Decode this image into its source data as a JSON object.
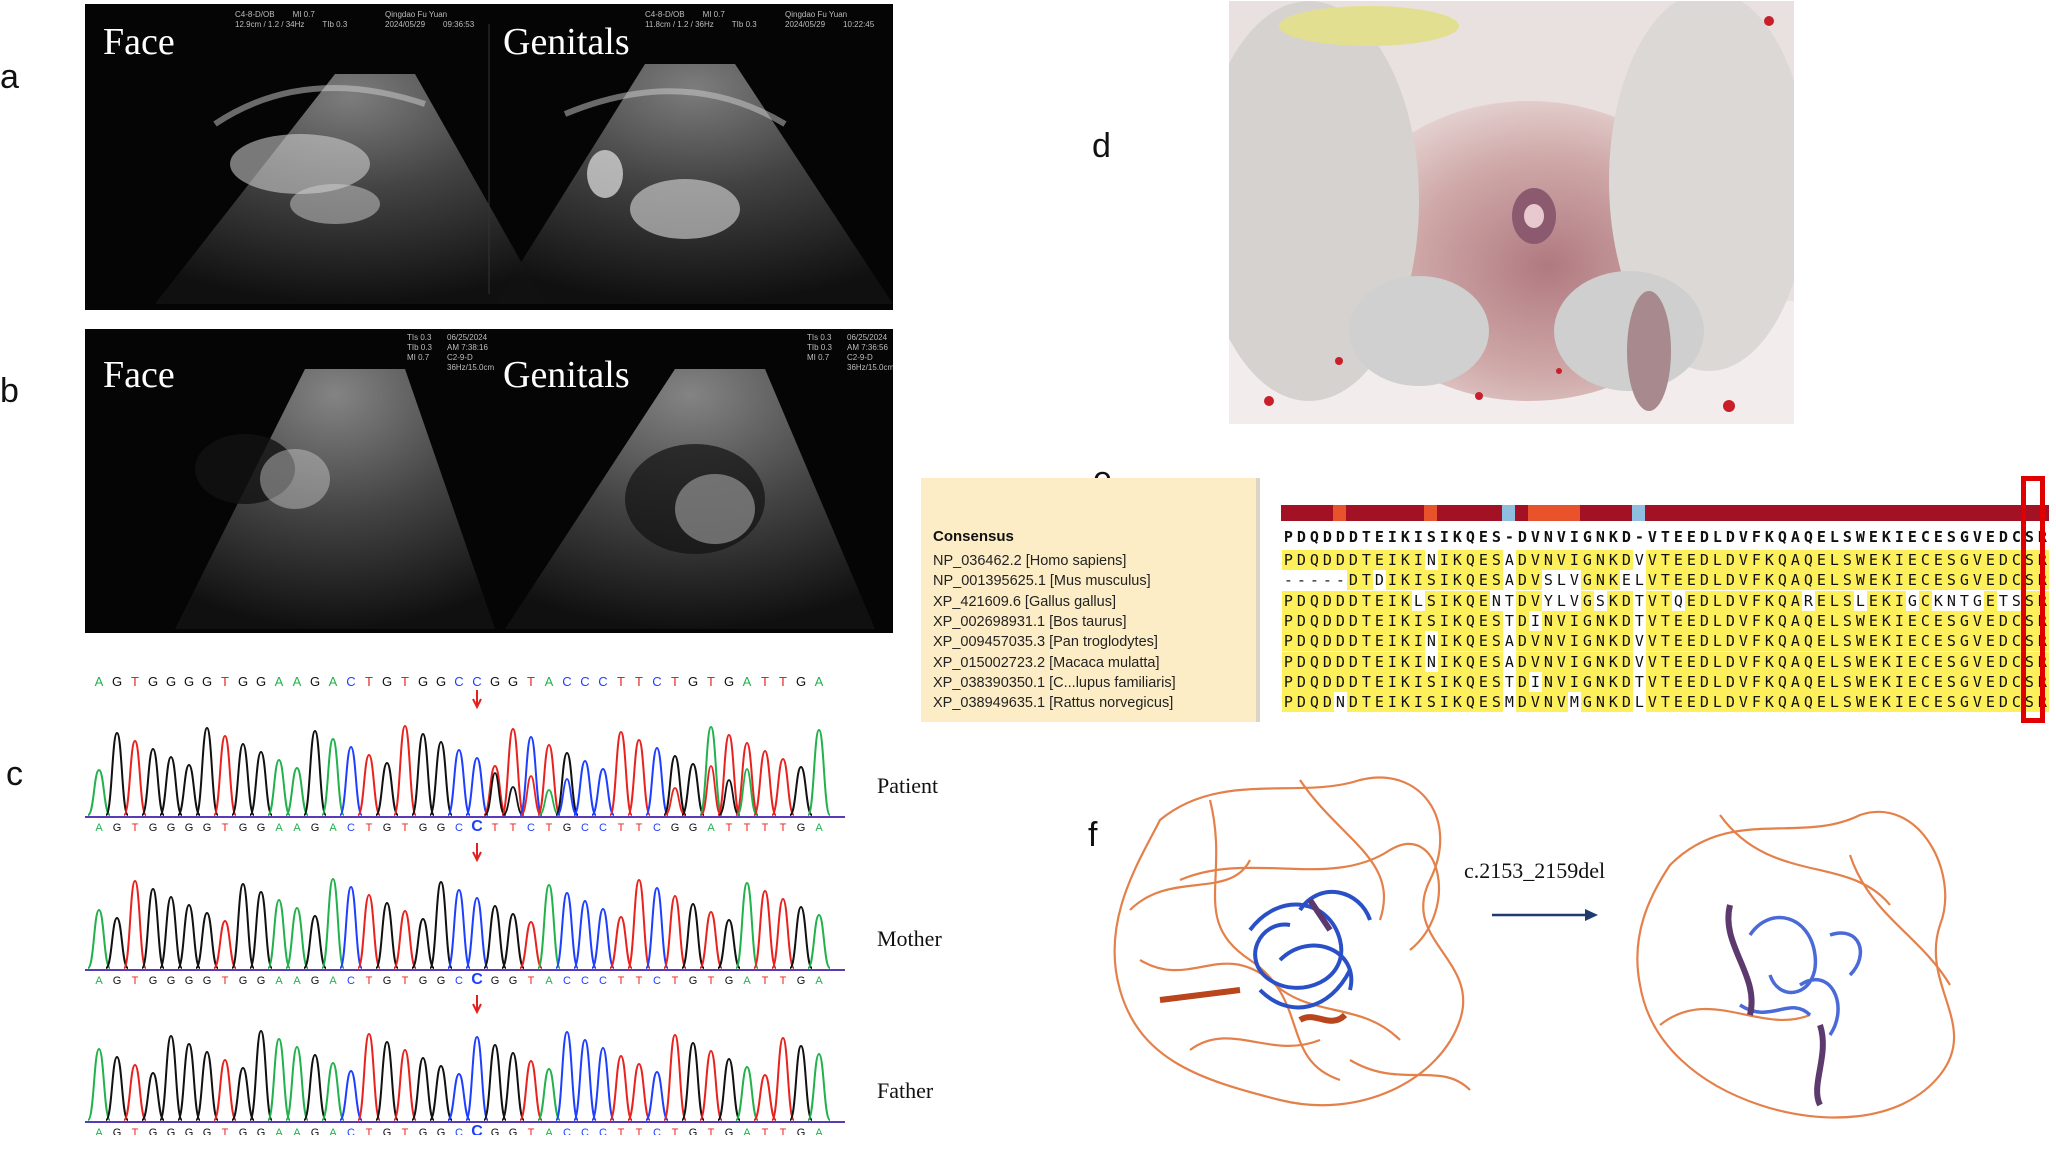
{
  "panels": {
    "a": "a",
    "b": "b",
    "c": "c",
    "d": "d",
    "e": "e",
    "f": "f"
  },
  "ultrasound": {
    "a": {
      "left_label": "Face",
      "right_label": "Genitals",
      "left_meta": [
        "C4-8-D/OB",
        "12.9cm / 1.2 / 34Hz",
        "MI 0.7",
        "TIb 0.3",
        "Qingdao Fu Yuan",
        "2024/05/29",
        "09:36:53"
      ],
      "right_meta": [
        "C4-8-D/OB",
        "11.8cm / 1.2 / 36Hz",
        "MI 0.7",
        "TIb 0.3",
        "Qingdao Fu Yuan",
        "2024/05/29",
        "10:22:45"
      ]
    },
    "b": {
      "left_label": "Face",
      "right_label": "Genitals",
      "left_meta": [
        "TIs 0.3",
        "TIb 0.3",
        "MI 0.7",
        "06/25/2024",
        "AM 7:38:16",
        "C2-9-D",
        "36Hz/15.0cm"
      ],
      "right_meta": [
        "TIs 0.3",
        "TIb 0.3",
        "MI 0.7",
        "06/25/2024",
        "AM 7:36:56",
        "C2-9-D",
        "36Hz/15.0cm"
      ]
    }
  },
  "chromatogram": {
    "reference": "AGTGGGGTGGAAGACTGTGGCCGGTACCCTTCTGTGATTGA",
    "traces": [
      {
        "label": "Patient",
        "bases": "AGTGGGGTGGAAGACTGTGGCCTTCTGCCTTCGGATTTTGA"
      },
      {
        "label": "Mother",
        "bases": "AGTGGGGTGGAAGACTGTGGCCGGTACCCTTCTGTGATTGA"
      },
      {
        "label": "Father",
        "bases": "AGTGGGGTGGAAGACTGTGGCCGGTACCCTTCTGTGATTGA"
      }
    ],
    "mutation_index": 21,
    "colors": {
      "A": "#22b14c",
      "C": "#1f3fff",
      "G": "#111111",
      "T": "#e8231f"
    }
  },
  "alignment": {
    "consensus_title": "Consensus",
    "consensus": "PDQDDDTEIKISIKQES-DVNVIGNKD-VTEEDLDVFKQAQELSWEKIECESGVEDCSR",
    "species": [
      {
        "id": "NP_036462.2 [Homo sapiens]",
        "seq": "PDQDDDTEIKINIKQESADVNVIGNKDVVTEEDLDVFKQAQELSWEKIECESGVEDCSR"
      },
      {
        "id": "NP_001395625.1 [Mus musculus]",
        "seq": "-----DTDIKISIKQESADVSLVGNKELVTEEDLDVFKQAQELSWEKIECESGVEDCSR"
      },
      {
        "id": "XP_421609.6 [Gallus gallus]",
        "seq": "PDQDDDTEIKLSIKQENTDVYLVGSKDTVTQEDLDVFKQARELSLEKIGCKNTGETSSR"
      },
      {
        "id": "XP_002698931.1 [Bos taurus]",
        "seq": "PDQDDDTEIKISIKQESTDINVIGNKDTVTEEDLDVFKQAQELSWEKIECESGVEDCSR"
      },
      {
        "id": "XP_009457035.3 [Pan troglodytes]",
        "seq": "PDQDDDTEIKINIKQESADVNVIGNKDVVTEEDLDVFKQAQELSWEKIECESGVEDCSR"
      },
      {
        "id": "XP_015002723.2 [Macaca mulatta]",
        "seq": "PDQDDDTEIKINIKQESADVNVIGNKDVVTEEDLDVFKQAQELSWEKIECESGVEDCSR"
      },
      {
        "id": "XP_038390350.1 [C...lupus familiaris]",
        "seq": "PDQDDDTEIKISIKQESTDINVIGNKDTVTEEDLDVFKQAQELSWEKIECESGVEDCSR"
      },
      {
        "id": "XP_038949635.1 [Rattus norvegicus]",
        "seq": "PDQDNDTEIKISIKQESMDVNVMGNKDLVTEEDLDVFKQAQELSWEKIECESGVEDCSR"
      }
    ],
    "conservation_colors": {
      "high": "#a31224",
      "mid": "#e8532c",
      "low": "#f7a25a",
      "gap": "#8fbfe0"
    },
    "highlight_color": "#fdf05a",
    "box_color": "#e00000"
  },
  "structure": {
    "mutation_label": "c.2153_2159del",
    "coil_color": "#e06a2a",
    "helix_color": "#2a50c8"
  }
}
